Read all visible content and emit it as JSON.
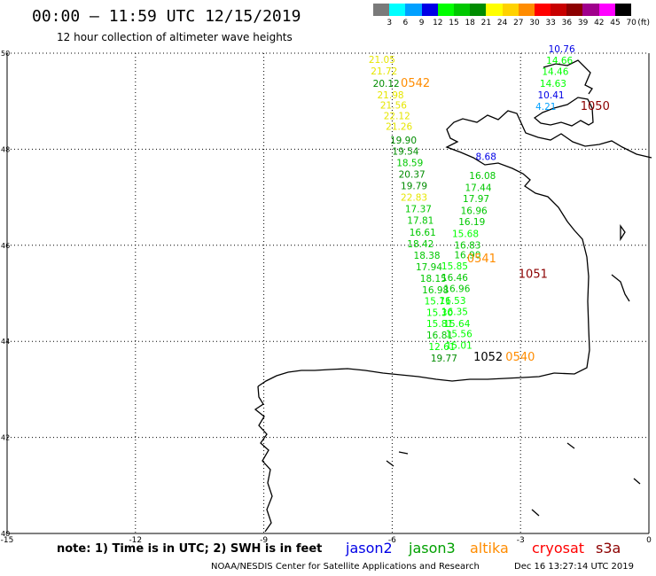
{
  "header": {
    "title": "00:00 — 11:59 UTC 12/15/2019",
    "subtitle": "12 hour collection of altimeter wave heights"
  },
  "color_scale": {
    "unit": "(ft)",
    "bins": [
      {
        "label": "3",
        "color": "#7a7a7a"
      },
      {
        "label": "6",
        "color": "#00ffff"
      },
      {
        "label": "9",
        "color": "#00a0ff"
      },
      {
        "label": "12",
        "color": "#0000e6"
      },
      {
        "label": "15",
        "color": "#00ff00"
      },
      {
        "label": "18",
        "color": "#00c800"
      },
      {
        "label": "21",
        "color": "#008c00"
      },
      {
        "label": "24",
        "color": "#ffff00"
      },
      {
        "label": "27",
        "color": "#ffd200"
      },
      {
        "label": "30",
        "color": "#ff8c00"
      },
      {
        "label": "33",
        "color": "#ff0000"
      },
      {
        "label": "36",
        "color": "#c80000"
      },
      {
        "label": "39",
        "color": "#8c0000"
      },
      {
        "label": "42",
        "color": "#a0008c"
      },
      {
        "label": "45",
        "color": "#ff00ff"
      },
      {
        "label": "70",
        "color": "#000000"
      }
    ]
  },
  "axes": {
    "x_ticks": [
      "-15",
      "-12",
      "-9",
      "-6",
      "-3",
      "0"
    ],
    "y_ticks": [
      "50",
      "48",
      "46",
      "44",
      "42",
      "40"
    ],
    "lon_range": [
      -15,
      0
    ],
    "lat_range": [
      40,
      50
    ]
  },
  "observations": [
    {
      "lon": -6.55,
      "lat": 49.8,
      "value": "21.05",
      "color": "#e6e600"
    },
    {
      "lon": -6.5,
      "lat": 49.56,
      "value": "21.72",
      "color": "#e6e600"
    },
    {
      "lon": -6.45,
      "lat": 49.3,
      "value": "20.12",
      "color": "#008c00"
    },
    {
      "lon": -6.35,
      "lat": 49.06,
      "value": "21.98",
      "color": "#e6e600"
    },
    {
      "lon": -6.28,
      "lat": 48.85,
      "value": "21.56",
      "color": "#e6e600"
    },
    {
      "lon": -6.2,
      "lat": 48.63,
      "value": "22.12",
      "color": "#e6e600"
    },
    {
      "lon": -6.15,
      "lat": 48.4,
      "value": "21.26",
      "color": "#e6e600"
    },
    {
      "lon": -6.05,
      "lat": 48.12,
      "value": "19.90",
      "color": "#008c00"
    },
    {
      "lon": -6.0,
      "lat": 47.89,
      "value": "19.54",
      "color": "#008c00"
    },
    {
      "lon": -5.9,
      "lat": 47.65,
      "value": "18.59",
      "color": "#00c800"
    },
    {
      "lon": -5.85,
      "lat": 47.41,
      "value": "20.37",
      "color": "#008c00"
    },
    {
      "lon": -5.8,
      "lat": 47.17,
      "value": "19.79",
      "color": "#008c00"
    },
    {
      "lon": -5.8,
      "lat": 46.93,
      "value": "22.83",
      "color": "#e6e600"
    },
    {
      "lon": -5.7,
      "lat": 46.69,
      "value": "17.37",
      "color": "#00c800"
    },
    {
      "lon": -5.65,
      "lat": 46.45,
      "value": "17.81",
      "color": "#00c800"
    },
    {
      "lon": -5.6,
      "lat": 46.2,
      "value": "16.61",
      "color": "#00c800"
    },
    {
      "lon": -5.65,
      "lat": 45.96,
      "value": "18.42",
      "color": "#00c800"
    },
    {
      "lon": -5.5,
      "lat": 45.72,
      "value": "18.38",
      "color": "#00c800"
    },
    {
      "lon": -5.45,
      "lat": 45.48,
      "value": "17.94",
      "color": "#00c800"
    },
    {
      "lon": -5.35,
      "lat": 45.24,
      "value": "18.15",
      "color": "#00c800"
    },
    {
      "lon": -5.3,
      "lat": 45.0,
      "value": "16.98",
      "color": "#00c800"
    },
    {
      "lon": -5.25,
      "lat": 44.77,
      "value": "15.71",
      "color": "#00ff00"
    },
    {
      "lon": -5.2,
      "lat": 44.53,
      "value": "15.30",
      "color": "#00ff00"
    },
    {
      "lon": -5.2,
      "lat": 44.3,
      "value": "15.81",
      "color": "#00ff00"
    },
    {
      "lon": -5.2,
      "lat": 44.06,
      "value": "16.81",
      "color": "#00c800"
    },
    {
      "lon": -5.15,
      "lat": 43.82,
      "value": "12.61",
      "color": "#00ff00"
    },
    {
      "lon": -5.1,
      "lat": 43.58,
      "value": "19.77",
      "color": "#008c00"
    },
    {
      "lon": -4.75,
      "lat": 43.85,
      "value": "15.01",
      "color": "#00ff00"
    },
    {
      "lon": -4.75,
      "lat": 44.09,
      "value": "15.56",
      "color": "#00ff00"
    },
    {
      "lon": -4.8,
      "lat": 44.3,
      "value": "15.64",
      "color": "#00ff00"
    },
    {
      "lon": -4.85,
      "lat": 44.55,
      "value": "16.35",
      "color": "#00ff00"
    },
    {
      "lon": -4.9,
      "lat": 44.78,
      "value": "16.53",
      "color": "#00ff00"
    },
    {
      "lon": -4.8,
      "lat": 45.03,
      "value": "16.96",
      "color": "#00c800"
    },
    {
      "lon": -4.85,
      "lat": 45.26,
      "value": "16.46",
      "color": "#00c800"
    },
    {
      "lon": -4.85,
      "lat": 45.5,
      "value": "15.85",
      "color": "#00ff00"
    },
    {
      "lon": -4.55,
      "lat": 45.73,
      "value": "16.90",
      "color": "#00c800"
    },
    {
      "lon": -4.55,
      "lat": 45.93,
      "value": "16.83",
      "color": "#00c800"
    },
    {
      "lon": -4.6,
      "lat": 46.17,
      "value": "15.68",
      "color": "#00ff00"
    },
    {
      "lon": -4.45,
      "lat": 46.42,
      "value": "16.19",
      "color": "#00c800"
    },
    {
      "lon": -4.4,
      "lat": 46.65,
      "value": "16.96",
      "color": "#00c800"
    },
    {
      "lon": -4.35,
      "lat": 46.9,
      "value": "17.97",
      "color": "#00c800"
    },
    {
      "lon": -4.3,
      "lat": 47.13,
      "value": "17.44",
      "color": "#00c800"
    },
    {
      "lon": -4.2,
      "lat": 47.38,
      "value": "16.08",
      "color": "#00c800"
    },
    {
      "lon": -4.05,
      "lat": 47.78,
      "value": "8.68",
      "color": "#0000e6"
    },
    {
      "lon": -2.35,
      "lat": 50.02,
      "value": "10.76",
      "color": "#0000e6"
    },
    {
      "lon": -2.4,
      "lat": 49.78,
      "value": "14.66",
      "color": "#00ff00"
    },
    {
      "lon": -2.5,
      "lat": 49.55,
      "value": "14.46",
      "color": "#00ff00"
    },
    {
      "lon": -2.55,
      "lat": 49.3,
      "value": "14.63",
      "color": "#00ff00"
    },
    {
      "lon": -2.6,
      "lat": 49.06,
      "value": "10.41",
      "color": "#0000e6"
    },
    {
      "lon": -2.65,
      "lat": 48.82,
      "value": "4.21",
      "color": "#00a0ff"
    }
  ],
  "pass_labels": [
    {
      "lon": -5.8,
      "lat": 49.3,
      "text": "0542",
      "color": "#ff8c00"
    },
    {
      "lon": -1.6,
      "lat": 48.82,
      "text": "1050",
      "color": "#8c0000"
    },
    {
      "lon": -4.25,
      "lat": 45.65,
      "text": "0541",
      "color": "#ff8c00"
    },
    {
      "lon": -3.05,
      "lat": 45.32,
      "text": "1051",
      "color": "#8c0000"
    },
    {
      "lon": -4.1,
      "lat": 43.6,
      "text": "1052",
      "color": "#000000"
    },
    {
      "lon": -3.35,
      "lat": 43.6,
      "text": "0540",
      "color": "#ff8c00"
    }
  ],
  "footer": {
    "note": "note: 1) Time is in UTC; 2) SWH is in feet",
    "missions": [
      {
        "name": "jason2",
        "color": "#0000e6"
      },
      {
        "name": "jason3",
        "color": "#00a000"
      },
      {
        "name": "altika",
        "color": "#ff8c00"
      },
      {
        "name": "cryosat",
        "color": "#ff0000"
      },
      {
        "name": "s3a",
        "color": "#8c0000"
      }
    ],
    "credit": "NOAA/NESDIS Center for Satellite Applications and Research",
    "generated": "Dec 16 13:27:14 UTC 2019"
  }
}
